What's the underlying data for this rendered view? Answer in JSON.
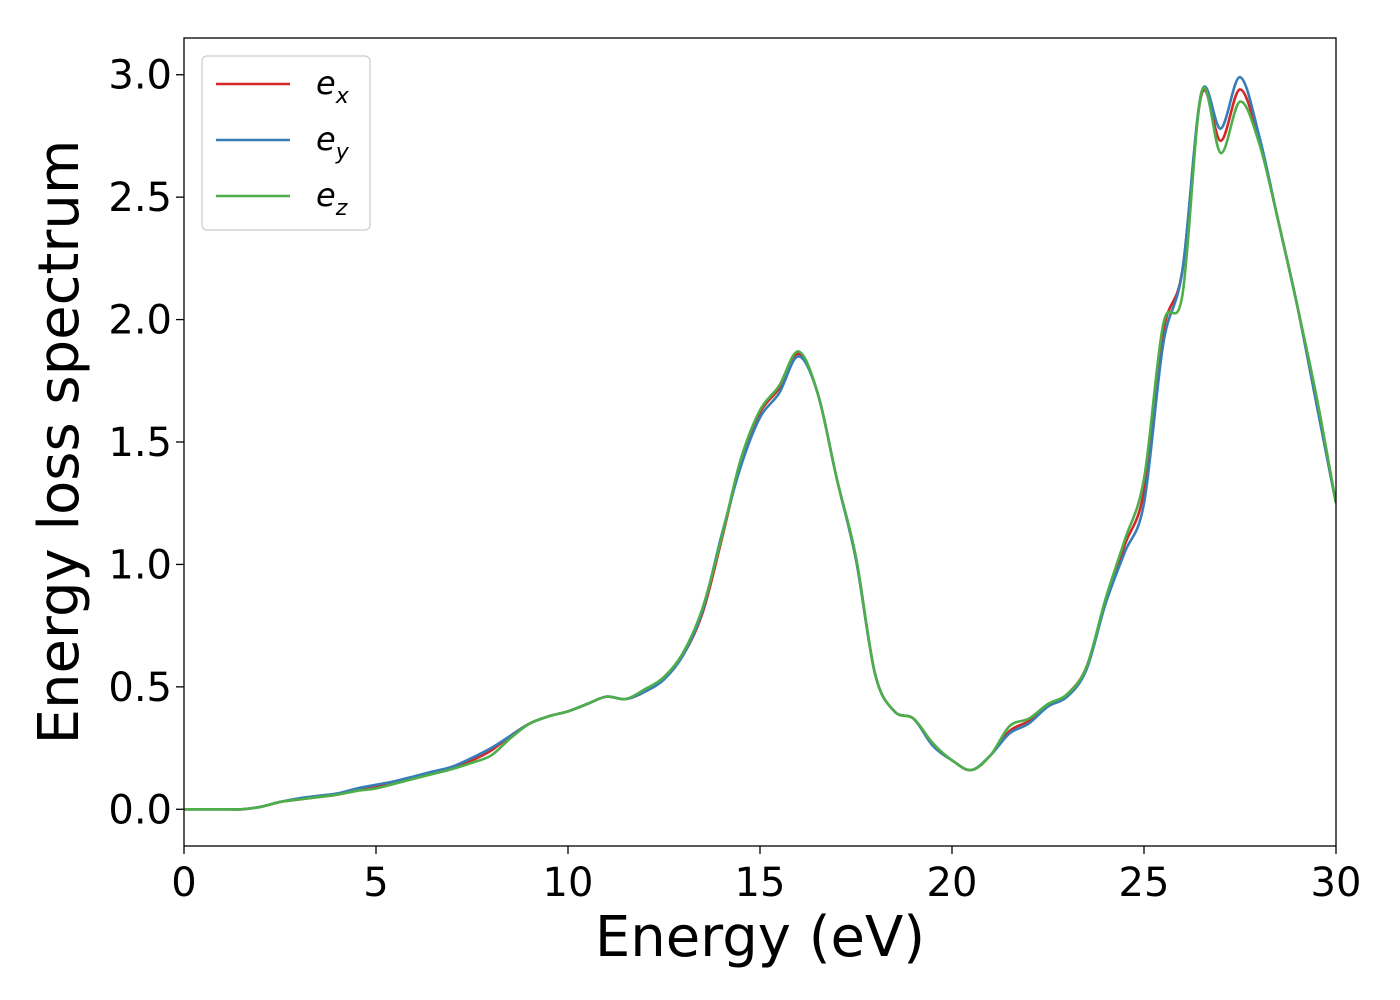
{
  "chart_data": {
    "type": "line",
    "xlabel": "Energy (eV)",
    "ylabel": "Energy loss spectrum",
    "xlim": [
      0,
      30
    ],
    "ylim": [
      -0.15,
      3.15
    ],
    "xticks": [
      0,
      5,
      10,
      15,
      20,
      25,
      30
    ],
    "yticks": [
      0.0,
      0.5,
      1.0,
      1.5,
      2.0,
      2.5,
      3.0
    ],
    "xtick_labels": [
      "0",
      "5",
      "10",
      "15",
      "20",
      "25",
      "30"
    ],
    "ytick_labels": [
      "0.0",
      "0.5",
      "1.0",
      "1.5",
      "2.0",
      "2.5",
      "3.0"
    ],
    "grid": false,
    "legend_position": "top-left",
    "series": [
      {
        "name": "e_x",
        "label_base": "e",
        "label_sub": "x",
        "color": "#d62728",
        "x": [
          0,
          0.5,
          1,
          1.5,
          2,
          2.5,
          3,
          3.5,
          4,
          4.5,
          5,
          5.5,
          6,
          6.5,
          7,
          7.5,
          8,
          8.5,
          9,
          9.5,
          10,
          10.5,
          11,
          11.5,
          12,
          12.5,
          13,
          13.5,
          14,
          14.5,
          15,
          15.5,
          16,
          16.5,
          17,
          17.5,
          18,
          18.5,
          19,
          19.5,
          20,
          20.5,
          21,
          21.5,
          22,
          22.5,
          23,
          23.5,
          24,
          24.5,
          25,
          25.5,
          26,
          26.5,
          27,
          27.5,
          28,
          28.5,
          29,
          29.5,
          30
        ],
        "y": [
          0,
          0,
          0,
          0,
          0.01,
          0.03,
          0.04,
          0.05,
          0.06,
          0.08,
          0.09,
          0.11,
          0.13,
          0.15,
          0.17,
          0.2,
          0.24,
          0.3,
          0.35,
          0.38,
          0.4,
          0.43,
          0.46,
          0.45,
          0.48,
          0.54,
          0.63,
          0.8,
          1.1,
          1.42,
          1.62,
          1.72,
          1.86,
          1.7,
          1.35,
          1.02,
          0.55,
          0.4,
          0.37,
          0.26,
          0.2,
          0.16,
          0.22,
          0.32,
          0.36,
          0.42,
          0.47,
          0.58,
          0.85,
          1.08,
          1.3,
          1.95,
          2.2,
          2.92,
          2.73,
          2.94,
          2.73,
          2.4,
          2.05,
          1.65,
          1.25
        ]
      },
      {
        "name": "e_y",
        "label_base": "e",
        "label_sub": "y",
        "color": "#377eb8",
        "x": [
          0,
          0.5,
          1,
          1.5,
          2,
          2.5,
          3,
          3.5,
          4,
          4.5,
          5,
          5.5,
          6,
          6.5,
          7,
          7.5,
          8,
          8.5,
          9,
          9.5,
          10,
          10.5,
          11,
          11.5,
          12,
          12.5,
          13,
          13.5,
          14,
          14.5,
          15,
          15.5,
          16,
          16.5,
          17,
          17.5,
          18,
          18.5,
          19,
          19.5,
          20,
          20.5,
          21,
          21.5,
          22,
          22.5,
          23,
          23.5,
          24,
          24.5,
          25,
          25.5,
          26,
          26.5,
          27,
          27.5,
          28,
          28.5,
          29,
          29.5,
          30
        ],
        "y": [
          0,
          0,
          0,
          0,
          0.01,
          0.03,
          0.045,
          0.055,
          0.065,
          0.085,
          0.1,
          0.115,
          0.135,
          0.155,
          0.175,
          0.21,
          0.25,
          0.3,
          0.35,
          0.38,
          0.4,
          0.43,
          0.46,
          0.45,
          0.48,
          0.53,
          0.63,
          0.81,
          1.12,
          1.4,
          1.6,
          1.7,
          1.85,
          1.7,
          1.35,
          1.02,
          0.55,
          0.4,
          0.37,
          0.26,
          0.2,
          0.16,
          0.22,
          0.31,
          0.35,
          0.42,
          0.46,
          0.57,
          0.84,
          1.05,
          1.25,
          1.9,
          2.2,
          2.93,
          2.78,
          2.99,
          2.75,
          2.4,
          2.05,
          1.65,
          1.25
        ]
      },
      {
        "name": "e_z",
        "label_base": "e",
        "label_sub": "z",
        "color": "#4daf4a",
        "x": [
          0,
          0.5,
          1,
          1.5,
          2,
          2.5,
          3,
          3.5,
          4,
          4.5,
          5,
          5.5,
          6,
          6.5,
          7,
          7.5,
          8,
          8.5,
          9,
          9.5,
          10,
          10.5,
          11,
          11.5,
          12,
          12.5,
          13,
          13.5,
          14,
          14.5,
          15,
          15.5,
          16,
          16.5,
          17,
          17.5,
          18,
          18.5,
          19,
          19.5,
          20,
          20.5,
          21,
          21.5,
          22,
          22.5,
          23,
          23.5,
          24,
          24.5,
          25,
          25.5,
          26,
          26.5,
          27,
          27.5,
          28,
          28.5,
          29,
          29.5,
          30
        ],
        "y": [
          0,
          0,
          0,
          0,
          0.01,
          0.03,
          0.04,
          0.05,
          0.06,
          0.075,
          0.085,
          0.105,
          0.125,
          0.145,
          0.165,
          0.19,
          0.22,
          0.29,
          0.35,
          0.38,
          0.4,
          0.43,
          0.46,
          0.45,
          0.49,
          0.54,
          0.64,
          0.82,
          1.11,
          1.43,
          1.63,
          1.73,
          1.87,
          1.7,
          1.35,
          1.03,
          0.55,
          0.4,
          0.37,
          0.27,
          0.2,
          0.16,
          0.22,
          0.34,
          0.37,
          0.43,
          0.47,
          0.58,
          0.86,
          1.1,
          1.35,
          1.98,
          2.1,
          2.93,
          2.68,
          2.89,
          2.72,
          2.4,
          2.05,
          1.68,
          1.25
        ]
      }
    ]
  }
}
